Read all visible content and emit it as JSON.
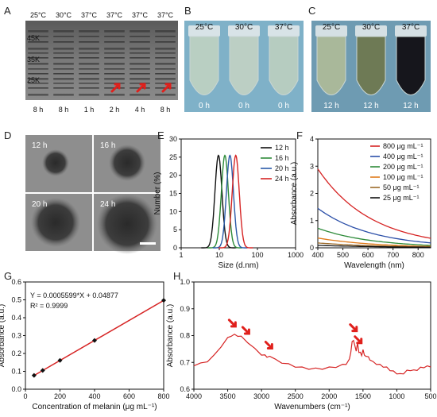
{
  "panels": {
    "A": {
      "label": "A",
      "temps": [
        "25°C",
        "30°C",
        "37°C",
        "37°C",
        "37°C",
        "37°C"
      ],
      "times": [
        "8 h",
        "8 h",
        "1 h",
        "2 h",
        "4 h",
        "8 h"
      ],
      "markers": [
        "45K",
        "35K",
        "25K"
      ]
    },
    "B": {
      "label": "B",
      "temps": [
        "25°C",
        "30°C",
        "37°C"
      ],
      "times": [
        "0 h",
        "0 h",
        "0 h"
      ]
    },
    "C": {
      "label": "C",
      "temps": [
        "25°C",
        "30°C",
        "37°C"
      ],
      "times": [
        "12 h",
        "12 h",
        "12 h"
      ]
    },
    "D": {
      "label": "D",
      "times": [
        "12 h",
        "16 h",
        "20 h",
        "24 h"
      ]
    },
    "G": {
      "label": "G"
    },
    "H": {
      "label": "H"
    }
  },
  "chart_data": [
    {
      "id": "E",
      "label": "E",
      "type": "line",
      "xlabel": "Size  (d.nm)",
      "ylabel": "Number  (%)",
      "xscale": "log",
      "xlim": [
        1,
        1000
      ],
      "ylim": [
        0,
        30
      ],
      "xticks": [
        "1",
        "10",
        "100",
        "1000"
      ],
      "yticks": [
        "0",
        "5",
        "10",
        "15",
        "20",
        "25",
        "30"
      ],
      "legend_position": "top-right",
      "series": [
        {
          "name": "12 h",
          "color": "#111111",
          "peak": 9.5,
          "height": 25.5
        },
        {
          "name": "16 h",
          "color": "#2e8b3a",
          "peak": 14,
          "height": 25.5
        },
        {
          "name": "20 h",
          "color": "#2b5aa8",
          "peak": 19,
          "height": 25.5
        },
        {
          "name": "24 h",
          "color": "#d62424",
          "peak": 27,
          "height": 25.5
        }
      ]
    },
    {
      "id": "F",
      "label": "F",
      "type": "line",
      "xlabel": "Wavelength  (nm)",
      "ylabel": "Absorbance  (a.u.)",
      "xlim": [
        400,
        850
      ],
      "ylim": [
        0,
        4
      ],
      "xticks": [
        "400",
        "500",
        "600",
        "700",
        "800"
      ],
      "yticks": [
        "0",
        "1",
        "2",
        "3",
        "4"
      ],
      "legend_position": "top-right",
      "series": [
        {
          "name": "800  μg  mL⁻¹",
          "color": "#d62424",
          "start": 2.9,
          "end": 0.35
        },
        {
          "name": "400  μg  mL⁻¹",
          "color": "#2b4fa8",
          "start": 1.45,
          "end": 0.18
        },
        {
          "name": "200  μg  mL⁻¹",
          "color": "#2e8b3a",
          "start": 0.72,
          "end": 0.09
        },
        {
          "name": "100  μg  mL⁻¹",
          "color": "#e07b1a",
          "start": 0.36,
          "end": 0.05
        },
        {
          "name": "50  μg  mL⁻¹",
          "color": "#9b6a2a",
          "start": 0.18,
          "end": 0.03
        },
        {
          "name": "25  μg  mL⁻¹",
          "color": "#111111",
          "start": 0.09,
          "end": 0.02
        }
      ]
    },
    {
      "id": "G",
      "type": "scatter",
      "xlabel": "Concentration of melanin  (μg  mL⁻¹)",
      "ylabel": "Absorbance  (a.u.)",
      "xlim": [
        0,
        800
      ],
      "ylim": [
        0,
        0.6
      ],
      "xticks": [
        "0",
        "200",
        "400",
        "600",
        "800"
      ],
      "yticks": [
        "0.0",
        "0.1",
        "0.2",
        "0.3",
        "0.4",
        "0.5",
        "0.6"
      ],
      "equation": "Y = 0.0005599*X + 0.04877",
      "r2": "R² = 0.9999",
      "fit": {
        "slope": 0.0005599,
        "intercept": 0.04877,
        "color": "#d62424"
      },
      "x": [
        50,
        100,
        200,
        400,
        800
      ],
      "y": [
        0.077,
        0.105,
        0.161,
        0.273,
        0.497
      ]
    },
    {
      "id": "H",
      "type": "line",
      "xlabel": "Wavenumbers  (cm⁻¹)",
      "ylabel": "Absorbance  (a.u.)",
      "xlim": [
        4000,
        500
      ],
      "ylim": [
        0.6,
        1.0
      ],
      "xticks": [
        "4000",
        "3500",
        "3000",
        "2500",
        "2000",
        "1500",
        "1000",
        "500"
      ],
      "yticks": [
        "0.6",
        "0.7",
        "0.8",
        "0.9",
        "1.0"
      ],
      "color": "#d62424",
      "x": [
        4000,
        3900,
        3800,
        3700,
        3600,
        3500,
        3450,
        3400,
        3350,
        3300,
        3200,
        3100,
        3000,
        2950,
        2920,
        2880,
        2850,
        2800,
        2700,
        2600,
        2500,
        2400,
        2300,
        2200,
        2100,
        2000,
        1900,
        1800,
        1750,
        1700,
        1680,
        1660,
        1640,
        1620,
        1600,
        1580,
        1560,
        1540,
        1520,
        1500,
        1480,
        1460,
        1440,
        1420,
        1400,
        1350,
        1300,
        1250,
        1200,
        1150,
        1100,
        1050,
        1000,
        950,
        900,
        850,
        800,
        750,
        700,
        650,
        600,
        550,
        500
      ],
      "y": [
        0.69,
        0.695,
        0.705,
        0.725,
        0.76,
        0.79,
        0.8,
        0.802,
        0.8,
        0.795,
        0.775,
        0.75,
        0.73,
        0.725,
        0.722,
        0.72,
        0.722,
        0.71,
        0.7,
        0.692,
        0.685,
        0.68,
        0.677,
        0.676,
        0.677,
        0.68,
        0.684,
        0.69,
        0.695,
        0.71,
        0.74,
        0.775,
        0.785,
        0.76,
        0.745,
        0.77,
        0.74,
        0.735,
        0.728,
        0.745,
        0.73,
        0.72,
        0.725,
        0.718,
        0.712,
        0.7,
        0.695,
        0.69,
        0.685,
        0.68,
        0.672,
        0.665,
        0.66,
        0.655,
        0.66,
        0.668,
        0.672,
        0.669,
        0.673,
        0.679,
        0.683,
        0.684,
        0.686
      ],
      "arrows_at": [
        3420,
        3220,
        2880,
        1630,
        1560
      ]
    }
  ]
}
